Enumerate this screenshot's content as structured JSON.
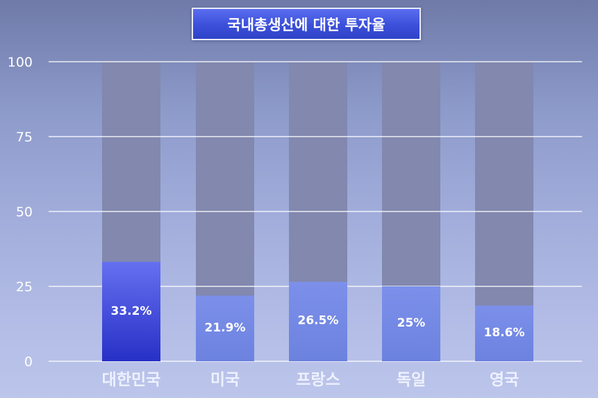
{
  "chart_data": {
    "type": "bar",
    "title": "국내총생산에 대한 투자율",
    "categories": [
      "대한민국",
      "미국",
      "프랑스",
      "독일",
      "영국"
    ],
    "values": [
      33.2,
      21.9,
      26.5,
      25,
      18.6
    ],
    "labels": [
      "33.2%",
      "21.9%",
      "26.5%",
      "25%",
      "18.6%"
    ],
    "highlight_index": 0,
    "ylim": [
      0,
      100
    ],
    "yticks": [
      "0",
      "25",
      "50",
      "75",
      "100"
    ],
    "grid": true,
    "colors": {
      "highlight_bar": "#3240d8",
      "bar": "#7a8fe6",
      "track": "#8288ae",
      "grid": "#ffffff",
      "label": "#ffffff",
      "category": "#eef1ff"
    }
  }
}
